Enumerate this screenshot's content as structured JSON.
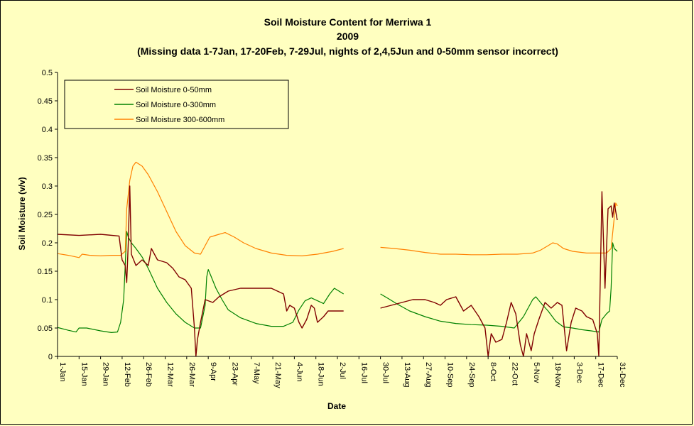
{
  "chart_data": {
    "type": "line",
    "title": "Soil Moisture Content for Merriwa 1",
    "subtitle": "2009",
    "note": "(Missing data 1-7Jan, 17-20Feb, 7-29Jul, nights of 2,4,5Jun and 0-50mm sensor incorrect)",
    "xlabel": "Date",
    "ylabel": "Soil Moisture (v/v)",
    "ylim": [
      0,
      0.5
    ],
    "yticks": [
      "0",
      "0.05",
      "0.1",
      "0.15",
      "0.2",
      "0.25",
      "0.3",
      "0.35",
      "0.4",
      "0.45",
      "0.5"
    ],
    "xlim_day": [
      1,
      365
    ],
    "xticks": [
      {
        "day": 1,
        "label": "1-Jan"
      },
      {
        "day": 15,
        "label": "15-Jan"
      },
      {
        "day": 29,
        "label": "29-Jan"
      },
      {
        "day": 43,
        "label": "12-Feb"
      },
      {
        "day": 57,
        "label": "26-Feb"
      },
      {
        "day": 71,
        "label": "12-Mar"
      },
      {
        "day": 85,
        "label": "26-Mar"
      },
      {
        "day": 99,
        "label": "9-Apr"
      },
      {
        "day": 113,
        "label": "23-Apr"
      },
      {
        "day": 127,
        "label": "7-May"
      },
      {
        "day": 141,
        "label": "21-May"
      },
      {
        "day": 155,
        "label": "4-Jun"
      },
      {
        "day": 169,
        "label": "18-Jun"
      },
      {
        "day": 183,
        "label": "2-Jul"
      },
      {
        "day": 197,
        "label": "16-Jul"
      },
      {
        "day": 211,
        "label": "30-Jul"
      },
      {
        "day": 225,
        "label": "13-Aug"
      },
      {
        "day": 239,
        "label": "27-Aug"
      },
      {
        "day": 253,
        "label": "10-Sep"
      },
      {
        "day": 267,
        "label": "24-Sep"
      },
      {
        "day": 281,
        "label": "8-Oct"
      },
      {
        "day": 295,
        "label": "22-Oct"
      },
      {
        "day": 309,
        "label": "5-Nov"
      },
      {
        "day": 323,
        "label": "19-Nov"
      },
      {
        "day": 337,
        "label": "3-Dec"
      },
      {
        "day": 351,
        "label": "17-Dec"
      },
      {
        "day": 365,
        "label": "31-Dec"
      }
    ],
    "grid": false,
    "legend": "top-left",
    "background": "#ffffc0",
    "series": [
      {
        "name": "Soil Moisture 0-50mm",
        "color": "#800000",
        "segments": [
          [
            [
              1,
              0.215
            ],
            [
              15,
              0.213
            ],
            [
              29,
              0.215
            ],
            [
              41,
              0.212
            ],
            [
              43,
              0.17
            ],
            [
              45,
              0.16
            ],
            [
              46,
              0.13
            ],
            [
              47,
              0.2
            ],
            [
              48,
              0.3
            ],
            [
              49,
              0.18
            ],
            [
              52,
              0.16
            ],
            [
              56,
              0.17
            ],
            [
              60,
              0.16
            ],
            [
              62,
              0.19
            ],
            [
              66,
              0.17
            ],
            [
              72,
              0.165
            ],
            [
              76,
              0.155
            ],
            [
              80,
              0.14
            ],
            [
              84,
              0.135
            ],
            [
              88,
              0.12
            ],
            [
              90,
              0.05
            ],
            [
              91,
              0.0
            ],
            [
              92,
              0.03
            ],
            [
              94,
              0.06
            ],
            [
              97,
              0.1
            ],
            [
              102,
              0.095
            ],
            [
              106,
              0.105
            ],
            [
              112,
              0.115
            ],
            [
              120,
              0.12
            ],
            [
              130,
              0.12
            ],
            [
              140,
              0.12
            ],
            [
              148,
              0.11
            ],
            [
              150,
              0.08
            ],
            [
              152,
              0.09
            ],
            [
              155,
              0.085
            ],
            [
              158,
              0.06
            ],
            [
              160,
              0.05
            ],
            [
              163,
              0.065
            ],
            [
              166,
              0.09
            ],
            [
              168,
              0.085
            ],
            [
              170,
              0.06
            ],
            [
              174,
              0.07
            ],
            [
              177,
              0.08
            ],
            [
              183,
              0.08
            ],
            [
              187,
              0.08
            ]
          ],
          [
            [
              211,
              0.085
            ],
            [
              218,
              0.09
            ],
            [
              225,
              0.095
            ],
            [
              232,
              0.1
            ],
            [
              240,
              0.1
            ],
            [
              246,
              0.095
            ],
            [
              250,
              0.09
            ],
            [
              254,
              0.1
            ],
            [
              260,
              0.105
            ],
            [
              265,
              0.08
            ],
            [
              270,
              0.09
            ],
            [
              275,
              0.07
            ],
            [
              279,
              0.05
            ],
            [
              281,
              0.0
            ],
            [
              283,
              0.04
            ],
            [
              286,
              0.025
            ],
            [
              290,
              0.03
            ],
            [
              293,
              0.06
            ],
            [
              296,
              0.095
            ],
            [
              299,
              0.075
            ],
            [
              302,
              0.02
            ],
            [
              304,
              0.0
            ],
            [
              306,
              0.04
            ],
            [
              309,
              0.01
            ],
            [
              311,
              0.04
            ],
            [
              314,
              0.065
            ],
            [
              318,
              0.095
            ],
            [
              322,
              0.085
            ],
            [
              326,
              0.095
            ],
            [
              329,
              0.09
            ],
            [
              332,
              0.01
            ],
            [
              335,
              0.06
            ],
            [
              338,
              0.085
            ],
            [
              342,
              0.08
            ],
            [
              345,
              0.07
            ],
            [
              349,
              0.065
            ],
            [
              352,
              0.04
            ],
            [
              353,
              0.0
            ],
            [
              355,
              0.29
            ],
            [
              357,
              0.12
            ],
            [
              359,
              0.26
            ],
            [
              361,
              0.265
            ],
            [
              362,
              0.245
            ],
            [
              363,
              0.27
            ],
            [
              365,
              0.24
            ]
          ]
        ]
      },
      {
        "name": "Soil Moisture 0-300mm",
        "color": "#008000",
        "segments": [
          [
            [
              1,
              0.051
            ],
            [
              8,
              0.046
            ],
            [
              13,
              0.043
            ],
            [
              15,
              0.05
            ],
            [
              20,
              0.05
            ],
            [
              29,
              0.045
            ],
            [
              36,
              0.042
            ],
            [
              40,
              0.043
            ],
            [
              42,
              0.06
            ],
            [
              44,
              0.1
            ],
            [
              46,
              0.22
            ],
            [
              47,
              0.21
            ],
            [
              49,
              0.2
            ],
            [
              52,
              0.19
            ],
            [
              56,
              0.175
            ],
            [
              60,
              0.155
            ],
            [
              66,
              0.12
            ],
            [
              72,
              0.095
            ],
            [
              78,
              0.075
            ],
            [
              84,
              0.06
            ],
            [
              90,
              0.05
            ],
            [
              94,
              0.05
            ],
            [
              97,
              0.09
            ],
            [
              98,
              0.14
            ],
            [
              99,
              0.153
            ],
            [
              101,
              0.14
            ],
            [
              104,
              0.12
            ],
            [
              108,
              0.1
            ],
            [
              112,
              0.082
            ],
            [
              120,
              0.068
            ],
            [
              130,
              0.058
            ],
            [
              140,
              0.053
            ],
            [
              148,
              0.053
            ],
            [
              154,
              0.06
            ],
            [
              158,
              0.082
            ],
            [
              162,
              0.098
            ],
            [
              166,
              0.103
            ],
            [
              170,
              0.098
            ],
            [
              174,
              0.093
            ],
            [
              178,
              0.11
            ],
            [
              181,
              0.12
            ],
            [
              184,
              0.115
            ],
            [
              187,
              0.11
            ]
          ],
          [
            [
              211,
              0.11
            ],
            [
              216,
              0.102
            ],
            [
              222,
              0.092
            ],
            [
              230,
              0.08
            ],
            [
              240,
              0.07
            ],
            [
              250,
              0.062
            ],
            [
              260,
              0.058
            ],
            [
              270,
              0.056
            ],
            [
              280,
              0.055
            ],
            [
              290,
              0.053
            ],
            [
              298,
              0.05
            ],
            [
              304,
              0.07
            ],
            [
              310,
              0.1
            ],
            [
              312,
              0.105
            ],
            [
              316,
              0.092
            ],
            [
              320,
              0.08
            ],
            [
              325,
              0.062
            ],
            [
              330,
              0.052
            ],
            [
              336,
              0.05
            ],
            [
              342,
              0.047
            ],
            [
              348,
              0.045
            ],
            [
              353,
              0.043
            ],
            [
              355,
              0.065
            ],
            [
              358,
              0.075
            ],
            [
              360,
              0.08
            ],
            [
              361,
              0.12
            ],
            [
              362,
              0.2
            ],
            [
              363,
              0.19
            ],
            [
              365,
              0.185
            ]
          ]
        ]
      },
      {
        "name": "Soil Moisture 300-600mm",
        "color": "#ff8000",
        "segments": [
          [
            [
              1,
              0.181
            ],
            [
              8,
              0.178
            ],
            [
              15,
              0.174
            ],
            [
              17,
              0.18
            ],
            [
              22,
              0.178
            ],
            [
              29,
              0.177
            ],
            [
              36,
              0.178
            ],
            [
              42,
              0.178
            ],
            [
              45,
              0.185
            ],
            [
              46,
              0.26
            ],
            [
              48,
              0.31
            ],
            [
              50,
              0.335
            ],
            [
              52,
              0.342
            ],
            [
              56,
              0.335
            ],
            [
              60,
              0.32
            ],
            [
              66,
              0.29
            ],
            [
              72,
              0.255
            ],
            [
              78,
              0.22
            ],
            [
              84,
              0.195
            ],
            [
              90,
              0.182
            ],
            [
              94,
              0.18
            ],
            [
              97,
              0.195
            ],
            [
              100,
              0.21
            ],
            [
              106,
              0.215
            ],
            [
              110,
              0.218
            ],
            [
              116,
              0.21
            ],
            [
              122,
              0.2
            ],
            [
              130,
              0.19
            ],
            [
              140,
              0.182
            ],
            [
              150,
              0.178
            ],
            [
              160,
              0.177
            ],
            [
              170,
              0.18
            ],
            [
              180,
              0.185
            ],
            [
              187,
              0.19
            ]
          ],
          [
            [
              211,
              0.192
            ],
            [
              220,
              0.19
            ],
            [
              230,
              0.187
            ],
            [
              240,
              0.183
            ],
            [
              250,
              0.18
            ],
            [
              260,
              0.18
            ],
            [
              270,
              0.179
            ],
            [
              280,
              0.179
            ],
            [
              290,
              0.18
            ],
            [
              300,
              0.18
            ],
            [
              310,
              0.182
            ],
            [
              315,
              0.187
            ],
            [
              320,
              0.195
            ],
            [
              323,
              0.2
            ],
            [
              326,
              0.198
            ],
            [
              330,
              0.19
            ],
            [
              336,
              0.185
            ],
            [
              345,
              0.182
            ],
            [
              352,
              0.182
            ],
            [
              358,
              0.182
            ],
            [
              361,
              0.19
            ],
            [
              364,
              0.27
            ],
            [
              365,
              0.265
            ]
          ]
        ]
      }
    ]
  }
}
